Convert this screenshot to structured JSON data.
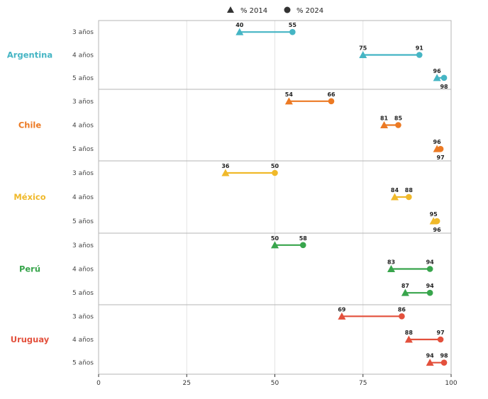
{
  "chart_data": {
    "type": "dumbbell",
    "legend": [
      {
        "label": "% 2014",
        "marker": "triangle"
      },
      {
        "label": "% 2024",
        "marker": "circle"
      }
    ],
    "legend_placement": "top-center",
    "xlim": [
      0,
      100
    ],
    "xticks": [
      "0",
      "25",
      "50",
      "75",
      "100"
    ],
    "grid": true,
    "groups": [
      {
        "name": "Argentina",
        "color": "#45b5c4",
        "rows": [
          {
            "label": "3 años",
            "v2014": 40,
            "v2024": 55
          },
          {
            "label": "4 años",
            "v2014": 75,
            "v2024": 91
          },
          {
            "label": "5 años",
            "v2014": 96,
            "v2024": 98
          }
        ]
      },
      {
        "name": "Chile",
        "color": "#ec7a24",
        "rows": [
          {
            "label": "3 años",
            "v2014": 54,
            "v2024": 66
          },
          {
            "label": "4 años",
            "v2014": 81,
            "v2024": 85
          },
          {
            "label": "5 años",
            "v2014": 96,
            "v2024": 97
          }
        ]
      },
      {
        "name": "México",
        "color": "#f0b92a",
        "rows": [
          {
            "label": "3 años",
            "v2014": 36,
            "v2024": 50
          },
          {
            "label": "4 años",
            "v2014": 84,
            "v2024": 88
          },
          {
            "label": "5 años",
            "v2014": 95,
            "v2024": 96
          }
        ]
      },
      {
        "name": "Perú",
        "color": "#38a54c",
        "rows": [
          {
            "label": "3 años",
            "v2014": 50,
            "v2024": 58
          },
          {
            "label": "4 años",
            "v2014": 83,
            "v2024": 94
          },
          {
            "label": "5 años",
            "v2014": 87,
            "v2024": 94
          }
        ]
      },
      {
        "name": "Uruguay",
        "color": "#e3503c",
        "rows": [
          {
            "label": "3 años",
            "v2014": 69,
            "v2024": 86
          },
          {
            "label": "4 años",
            "v2014": 88,
            "v2024": 97
          },
          {
            "label": "5 años",
            "v2014": 94,
            "v2024": 98
          }
        ]
      }
    ]
  }
}
